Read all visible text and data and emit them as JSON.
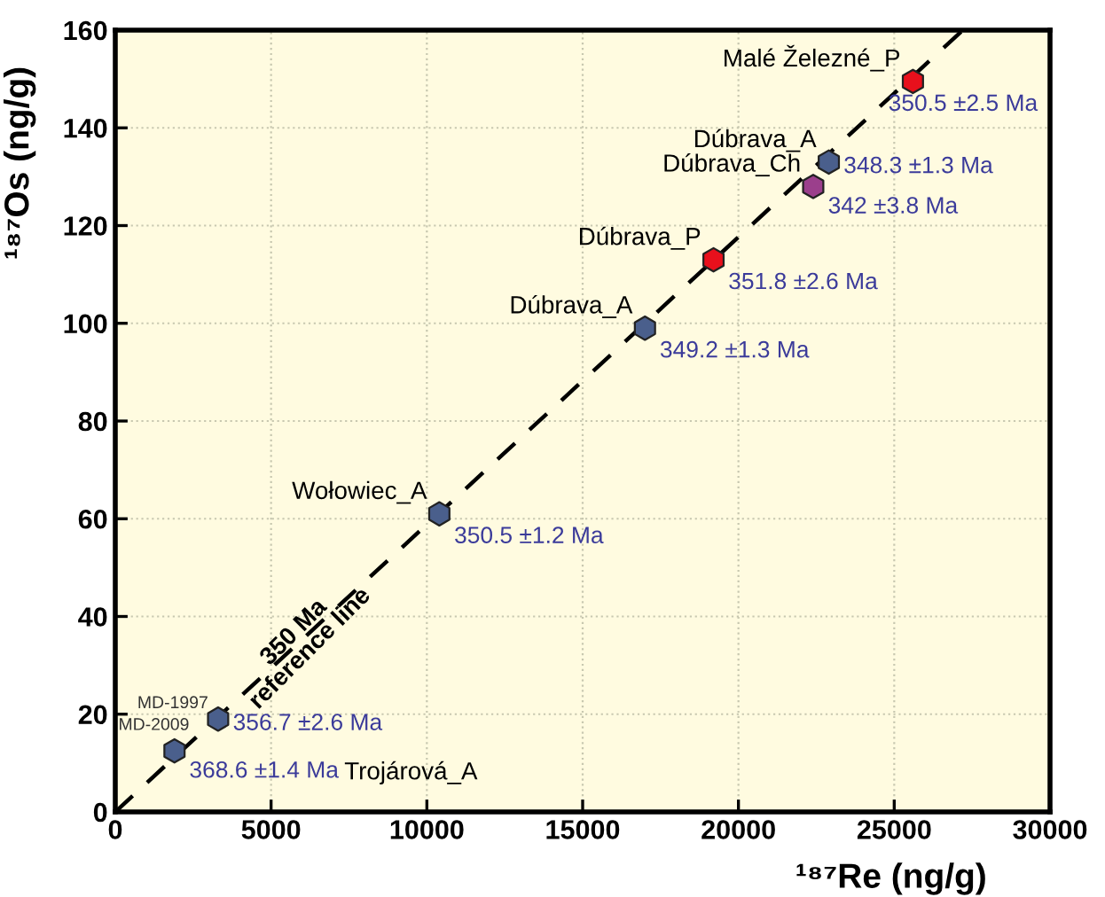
{
  "chart_data": {
    "type": "scatter",
    "xlabel": "¹⁸⁷Re (ng/g)",
    "ylabel": "¹⁸⁷Os (ng/g)",
    "xlim": [
      0,
      30000
    ],
    "xticks": [
      0,
      5000,
      10000,
      15000,
      20000,
      25000,
      30000
    ],
    "ylim": [
      0,
      160
    ],
    "yticks": [
      0,
      20,
      40,
      60,
      80,
      100,
      120,
      140,
      160
    ],
    "grid": true,
    "series": [
      {
        "type": "line",
        "line_style": "dashed",
        "color": "#000000",
        "x": [
          0,
          27200
        ],
        "values": [
          0,
          160
        ]
      },
      {
        "x": [
          1900,
          3300,
          10400,
          17000,
          19200,
          22400,
          22900,
          25600
        ],
        "values": [
          12.5,
          19,
          61,
          99,
          113,
          128,
          133,
          149.5
        ],
        "colors": [
          "#4a5f8c",
          "#4a5f8c",
          "#4a5f8c",
          "#4a5f8c",
          "#e8101c",
          "#9b3f8c",
          "#4a5f8c",
          "#e8101c"
        ]
      }
    ],
    "annotations": [
      {
        "text": "MD-2009",
        "x": 1900,
        "y": 12.5
      },
      {
        "text": "368.6 ±1.4 Ma",
        "x": 1900,
        "y": 12.5
      },
      "Trojárová_A",
      {
        "text": "MD-1997",
        "x": 3300,
        "y": 19
      },
      {
        "text": "356.7 ±2.6 Ma",
        "x": 3300,
        "y": 19
      },
      {
        "text": "Wołowiec_A",
        "x": 10400,
        "y": 61
      },
      {
        "text": "350.5 ±1.2 Ma",
        "x": 10400,
        "y": 61
      },
      {
        "text": "Dúbrava_A",
        "x": 17000,
        "y": 99
      },
      {
        "text": "349.2 ±1.3 Ma",
        "x": 17000,
        "y": 99
      },
      {
        "text": "Dúbrava_P",
        "x": 19200,
        "y": 113
      },
      {
        "text": "351.8 ±2.6 Ma",
        "x": 19200,
        "y": 113
      },
      {
        "text": "Dúbrava_Ch",
        "x": 22400,
        "y": 128
      },
      {
        "text": "342 ±3.8 Ma",
        "x": 22400,
        "y": 128
      },
      {
        "text": "Dúbrava_A",
        "x": 22900,
        "y": 133
      },
      {
        "text": "348.3 ±1.3 Ma",
        "x": 22900,
        "y": 133
      },
      {
        "text": "Malé Železné_P",
        "x": 25600,
        "y": 149.5
      },
      {
        "text": "350.5 ±2.5 Ma",
        "x": 25600,
        "y": 149.5
      },
      {
        "text": "350 Ma\nreference line",
        "x": 6000,
        "y": 35
      }
    ]
  }
}
